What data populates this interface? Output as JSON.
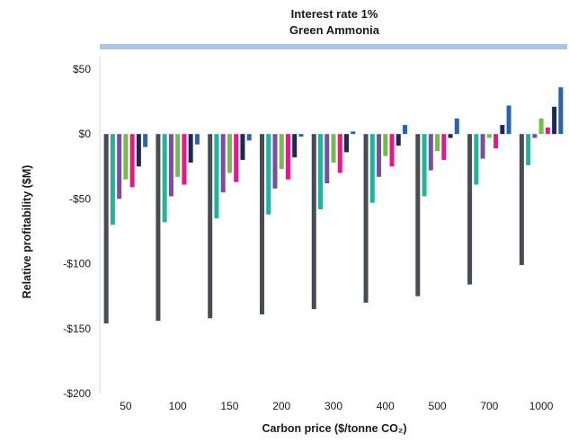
{
  "chart_data": {
    "type": "bar",
    "title": "Interest rate 1%",
    "subtitle": "Green Ammonia",
    "xlabel": "Carbon price ($/tonne CO₂)",
    "ylabel": "Relative profitability ($M)",
    "ylim": [
      -200,
      50
    ],
    "yticks": [
      50,
      0,
      -50,
      -100,
      -150,
      -200
    ],
    "ytick_labels": [
      "$50",
      "$0",
      "-$50",
      "-$100",
      "-$150",
      "-$200"
    ],
    "grid": false,
    "categories": [
      "50",
      "100",
      "150",
      "200",
      "300",
      "400",
      "500",
      "700",
      "1000"
    ],
    "colors": {
      "banner": "#a9c6e8",
      "series": [
        "#484c55",
        "#1fb59a",
        "#7a4fa3",
        "#6fbf4a",
        "#e8168b",
        "#1a2a52",
        "#2a63ad"
      ]
    },
    "series": [
      {
        "values": [
          -146,
          -144,
          -142,
          -139,
          -135,
          -130,
          -125,
          -116,
          -101
        ]
      },
      {
        "values": [
          -70,
          -68,
          -65,
          -62,
          -58,
          -53,
          -48,
          -39,
          -24
        ]
      },
      {
        "values": [
          -50,
          -48,
          -45,
          -42,
          -38,
          -33,
          -28,
          -19,
          -3
        ]
      },
      {
        "values": [
          -35,
          -33,
          -30,
          -27,
          -22,
          -17,
          -13,
          -3,
          12
        ]
      },
      {
        "values": [
          -41,
          -39,
          -37,
          -35,
          -30,
          -25,
          -20,
          -11,
          5
        ]
      },
      {
        "values": [
          -25,
          -22,
          -20,
          -18,
          -14,
          -9,
          -3,
          7,
          21
        ]
      },
      {
        "values": [
          -10,
          -8,
          -5,
          -2,
          2,
          7,
          12,
          22,
          36
        ]
      }
    ]
  }
}
